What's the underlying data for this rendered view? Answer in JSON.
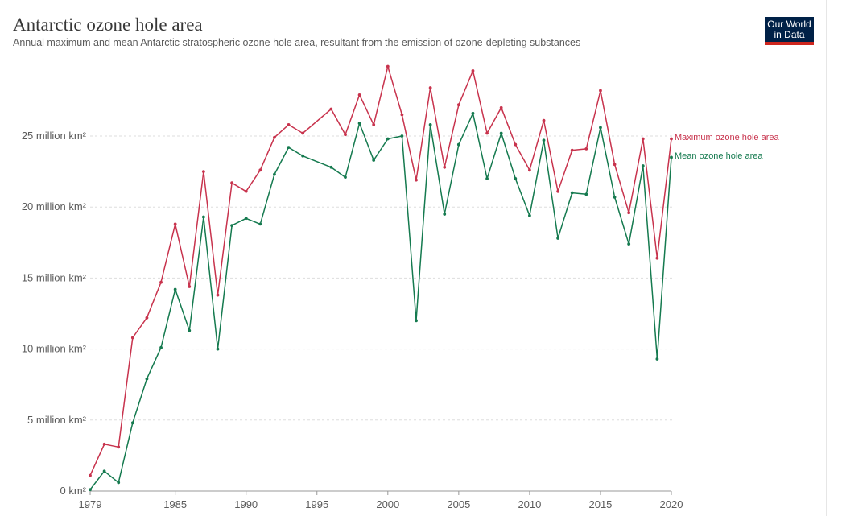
{
  "header": {
    "title": "Antarctic ozone hole area",
    "subtitle": "Annual maximum and mean Antarctic stratospheric ozone hole area, resultant from the emission of ozone-depleting substances"
  },
  "logo": {
    "line1": "Our World",
    "line2": "in Data"
  },
  "colors": {
    "max": "#c8334d",
    "mean": "#157a4f",
    "grid": "#dddddd",
    "axis": "#999999"
  },
  "chart_data": {
    "type": "line",
    "title": "Antarctic ozone hole area",
    "xlabel": "",
    "ylabel": "",
    "xlim": [
      1979,
      2020
    ],
    "ylim": [
      0,
      25
    ],
    "x_ticks": [
      {
        "value": 1979,
        "label": "1979"
      },
      {
        "value": 1985,
        "label": "1985"
      },
      {
        "value": 1990,
        "label": "1990"
      },
      {
        "value": 1995,
        "label": "1995"
      },
      {
        "value": 2000,
        "label": "2000"
      },
      {
        "value": 2005,
        "label": "2005"
      },
      {
        "value": 2010,
        "label": "2010"
      },
      {
        "value": 2015,
        "label": "2015"
      },
      {
        "value": 2020,
        "label": "2020"
      }
    ],
    "y_ticks": [
      {
        "value": 0,
        "label": "0 km²"
      },
      {
        "value": 5,
        "label": "5 million km²"
      },
      {
        "value": 10,
        "label": "10 million km²"
      },
      {
        "value": 15,
        "label": "15 million km²"
      },
      {
        "value": 20,
        "label": "20 million km²"
      },
      {
        "value": 25,
        "label": "25 million km²"
      }
    ],
    "series": [
      {
        "name": "Maximum ozone hole area",
        "color": "#c8334d",
        "points": [
          [
            1979,
            1.1
          ],
          [
            1980,
            3.3
          ],
          [
            1981,
            3.1
          ],
          [
            1982,
            10.8
          ],
          [
            1983,
            12.2
          ],
          [
            1984,
            14.7
          ],
          [
            1985,
            18.8
          ],
          [
            1986,
            14.4
          ],
          [
            1987,
            22.5
          ],
          [
            1988,
            13.8
          ],
          [
            1989,
            21.7
          ],
          [
            1990,
            21.1
          ],
          [
            1991,
            22.6
          ],
          [
            1992,
            24.9
          ],
          [
            1993,
            25.8
          ],
          [
            1994,
            25.2
          ],
          [
            1996,
            26.9
          ],
          [
            1997,
            25.1
          ],
          [
            1998,
            27.9
          ],
          [
            1999,
            25.8
          ],
          [
            2000,
            29.9
          ],
          [
            2001,
            26.5
          ],
          [
            2002,
            21.9
          ],
          [
            2003,
            28.4
          ],
          [
            2004,
            22.8
          ],
          [
            2005,
            27.2
          ],
          [
            2006,
            29.6
          ],
          [
            2007,
            25.2
          ],
          [
            2008,
            27.0
          ],
          [
            2009,
            24.4
          ],
          [
            2010,
            22.6
          ],
          [
            2011,
            26.1
          ],
          [
            2012,
            21.1
          ],
          [
            2013,
            24.0
          ],
          [
            2014,
            24.1
          ],
          [
            2015,
            28.2
          ],
          [
            2016,
            23.0
          ],
          [
            2017,
            19.6
          ],
          [
            2018,
            24.8
          ],
          [
            2019,
            16.4
          ],
          [
            2020,
            24.8
          ]
        ]
      },
      {
        "name": "Mean ozone hole area",
        "color": "#157a4f",
        "points": [
          [
            1979,
            0.1
          ],
          [
            1980,
            1.4
          ],
          [
            1981,
            0.6
          ],
          [
            1982,
            4.8
          ],
          [
            1983,
            7.9
          ],
          [
            1984,
            10.1
          ],
          [
            1985,
            14.2
          ],
          [
            1986,
            11.3
          ],
          [
            1987,
            19.3
          ],
          [
            1988,
            10.0
          ],
          [
            1989,
            18.7
          ],
          [
            1990,
            19.2
          ],
          [
            1991,
            18.8
          ],
          [
            1992,
            22.3
          ],
          [
            1993,
            24.2
          ],
          [
            1994,
            23.6
          ],
          [
            1996,
            22.8
          ],
          [
            1997,
            22.1
          ],
          [
            1998,
            25.9
          ],
          [
            1999,
            23.3
          ],
          [
            2000,
            24.8
          ],
          [
            2001,
            25.0
          ],
          [
            2002,
            12.0
          ],
          [
            2003,
            25.8
          ],
          [
            2004,
            19.5
          ],
          [
            2005,
            24.4
          ],
          [
            2006,
            26.6
          ],
          [
            2007,
            22.0
          ],
          [
            2008,
            25.2
          ],
          [
            2009,
            22.0
          ],
          [
            2010,
            19.4
          ],
          [
            2011,
            24.7
          ],
          [
            2012,
            17.8
          ],
          [
            2013,
            21.0
          ],
          [
            2014,
            20.9
          ],
          [
            2015,
            25.6
          ],
          [
            2016,
            20.7
          ],
          [
            2017,
            17.4
          ],
          [
            2018,
            22.9
          ],
          [
            2019,
            9.3
          ],
          [
            2020,
            23.5
          ]
        ]
      }
    ]
  }
}
